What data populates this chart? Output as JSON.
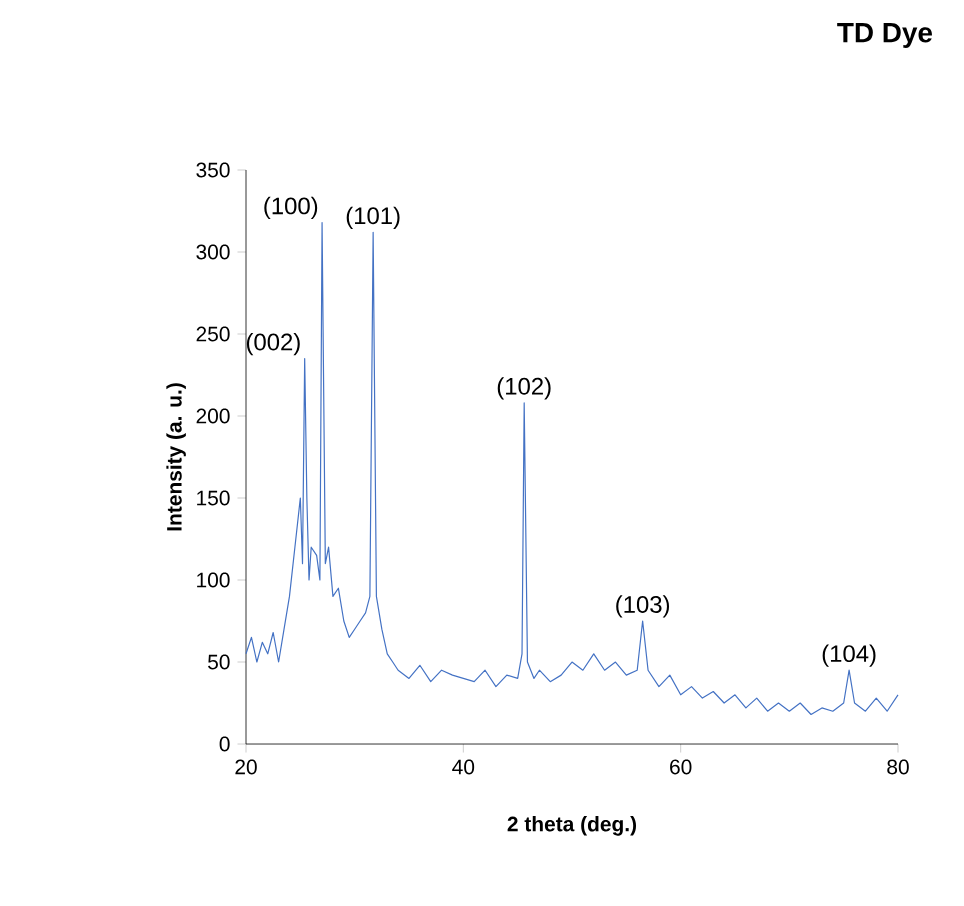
{
  "chart_data": {
    "type": "line",
    "title": "TD Dye",
    "xlabel": "2 theta (deg.)",
    "ylabel": "Intensity (a. u.)",
    "x": [
      20,
      20.5,
      21,
      21.5,
      22,
      22.5,
      23,
      23.5,
      24,
      24.5,
      25,
      25.2,
      25.4,
      25.6,
      25.8,
      26,
      26.5,
      26.8,
      27,
      27.3,
      27.6,
      28,
      28.5,
      29,
      29.5,
      30,
      30.5,
      31,
      31.4,
      31.7,
      32,
      32.5,
      33,
      33.5,
      34,
      35,
      36,
      37,
      38,
      39,
      40,
      41,
      42,
      43,
      44,
      45,
      45.4,
      45.6,
      45.9,
      46.5,
      47,
      48,
      49,
      50,
      51,
      52,
      53,
      54,
      55,
      56,
      56.5,
      57,
      58,
      59,
      60,
      61,
      62,
      63,
      64,
      65,
      66,
      67,
      68,
      69,
      70,
      71,
      72,
      73,
      74,
      75,
      75.5,
      76,
      77,
      78,
      79,
      80
    ],
    "values": [
      55,
      65,
      50,
      62,
      55,
      68,
      50,
      70,
      90,
      120,
      150,
      110,
      235,
      150,
      100,
      120,
      115,
      100,
      318,
      110,
      120,
      90,
      95,
      75,
      65,
      70,
      75,
      80,
      90,
      312,
      90,
      70,
      55,
      50,
      45,
      40,
      48,
      38,
      45,
      42,
      40,
      38,
      45,
      35,
      42,
      40,
      55,
      208,
      50,
      40,
      45,
      38,
      42,
      50,
      45,
      55,
      45,
      50,
      42,
      45,
      75,
      45,
      35,
      42,
      30,
      35,
      28,
      32,
      25,
      30,
      22,
      28,
      20,
      25,
      20,
      25,
      18,
      22,
      20,
      25,
      45,
      25,
      20,
      28,
      20,
      30
    ],
    "color": "#4472c4",
    "xlim": [
      20,
      80
    ],
    "ylim": [
      0,
      350
    ],
    "xticks": [
      20,
      40,
      60,
      80
    ],
    "yticks": [
      0,
      50,
      100,
      150,
      200,
      250,
      300,
      350
    ],
    "annotations": [
      {
        "text": "(002)",
        "x": 25.4,
        "y": 235
      },
      {
        "text": "(100)",
        "x": 27,
        "y": 318
      },
      {
        "text": "(101)",
        "x": 31.7,
        "y": 312
      },
      {
        "text": "(102)",
        "x": 45.6,
        "y": 208
      },
      {
        "text": "(103)",
        "x": 56.5,
        "y": 75
      },
      {
        "text": "(104)",
        "x": 75.5,
        "y": 45
      }
    ]
  }
}
